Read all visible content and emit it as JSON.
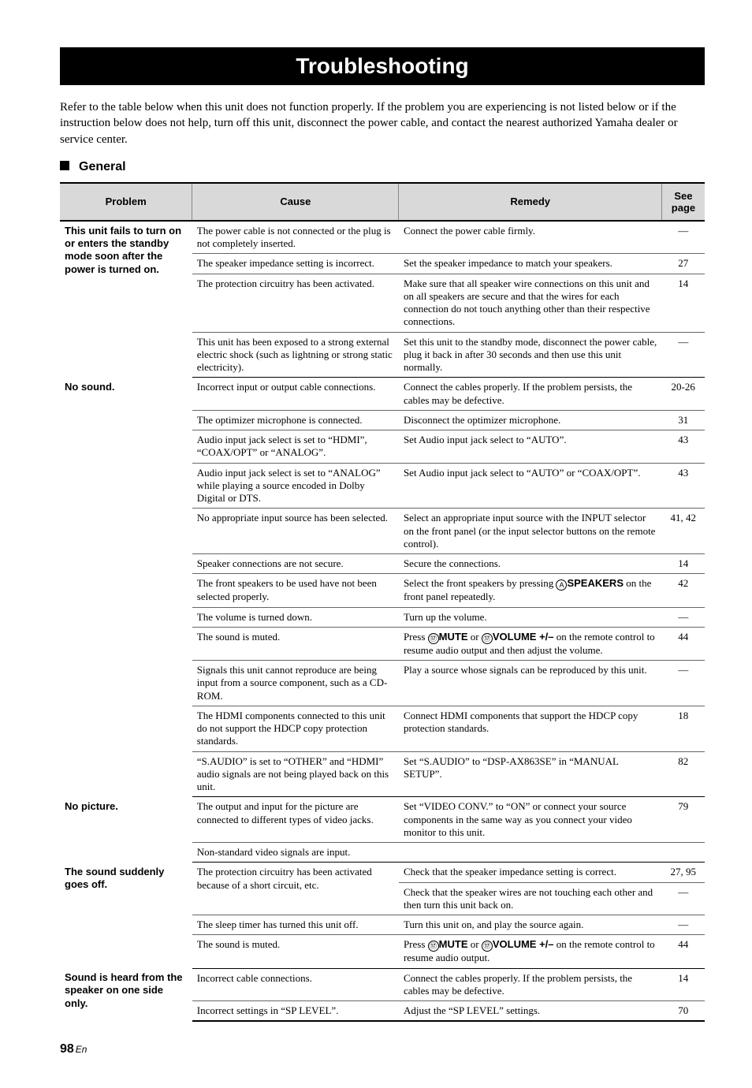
{
  "title": "Troubleshooting",
  "intro": "Refer to the table below when this unit does not function properly. If the problem you are experiencing is not listed below or if the instruction below does not help, turn off this unit, disconnect the power cable, and contact the nearest authorized Yamaha dealer or service center.",
  "section": "General",
  "headers": {
    "problem": "Problem",
    "cause": "Cause",
    "remedy": "Remedy",
    "page": "See page"
  },
  "rows": [
    {
      "problem": "This unit fails to turn on or enters the standby mode soon after the power is turned on.",
      "problem_rowspan": 4,
      "cause": "The power cable is not connected or the plug is not completely inserted.",
      "remedy": "Connect the power cable firmly.",
      "page": "—",
      "sep": "thin",
      "problem_nobb": true
    },
    {
      "cause": "The speaker impedance setting is incorrect.",
      "remedy": "Set the speaker impedance to match your speakers.",
      "page": "27",
      "sep": "thin"
    },
    {
      "cause": "The protection circuitry has been activated.",
      "remedy": "Make sure that all speaker wire connections on this unit and on all speakers are secure and that the wires for each connection do not touch anything other than their respective connections.",
      "page": "14",
      "sep": "thin"
    },
    {
      "cause": "This unit has been exposed to a strong external electric shock (such as lightning or strong static electricity).",
      "remedy": "Set this unit to the standby mode, disconnect the power cable, plug it back in after 30 seconds and then use this unit normally.",
      "page": "—",
      "sep": "thick"
    },
    {
      "problem": "No sound.",
      "problem_rowspan": 12,
      "cause": "Incorrect input or output cable connections.",
      "remedy": "Connect the cables properly. If the problem persists, the cables may be defective.",
      "page": "20-26",
      "sep": "thin",
      "problem_nobb": true
    },
    {
      "cause": "The optimizer microphone is connected.",
      "remedy": "Disconnect the optimizer microphone.",
      "page": "31",
      "sep": "thin"
    },
    {
      "cause": "Audio input jack select is set to “HDMI”, “COAX/OPT” or “ANALOG”.",
      "remedy": "Set Audio input jack select to “AUTO”.",
      "page": "43",
      "sep": "thin"
    },
    {
      "cause": "Audio input jack select is set to “ANALOG” while playing a source encoded in Dolby Digital or DTS.",
      "remedy": "Set Audio input jack select to “AUTO” or “COAX/OPT”.",
      "page": "43",
      "sep": "thin"
    },
    {
      "cause": "No appropriate input source has been selected.",
      "remedy": "Select an appropriate input source with the INPUT selector on the front panel (or the input selector buttons on the remote control).",
      "page": "41, 42",
      "sep": "thin"
    },
    {
      "cause": "Speaker connections are not secure.",
      "remedy": "Secure the connections.",
      "page": "14",
      "sep": "thin"
    },
    {
      "cause": "The front speakers to be used have not been selected properly.",
      "remedy_html": "Select the front speakers by pressing <span class='circled'>A</span><span class='sans-bold'>SPEAKERS</span> on the front panel repeatedly.",
      "page": "42",
      "sep": "thin"
    },
    {
      "cause": "The volume is turned down.",
      "remedy": "Turn up the volume.",
      "page": "—",
      "sep": "thin"
    },
    {
      "cause": "The sound is muted.",
      "remedy_html": "Press <span class='circled'>⑰</span><span class='sans-bold'>MUTE</span> or <span class='circled'>⑰</span><span class='sans-bold'>VOLUME +/–</span> on the remote control to resume audio output and then adjust the volume.",
      "page": "44",
      "sep": "thin"
    },
    {
      "cause": "Signals this unit cannot reproduce are being input from a source component, such as a CD-ROM.",
      "remedy": "Play a source whose signals can be reproduced by this unit.",
      "page": "—",
      "sep": "thin"
    },
    {
      "cause": "The HDMI components connected to this unit do not support the HDCP copy protection standards.",
      "remedy": "Connect HDMI components that support the HDCP copy protection standards.",
      "page": "18",
      "sep": "thin"
    },
    {
      "cause": "“S.AUDIO” is set to “OTHER” and “HDMI” audio signals are not being played back on this unit.",
      "remedy": "Set “S.AUDIO” to “DSP-AX863SE” in “MANUAL SETUP”.",
      "page": "82",
      "sep": "thick"
    },
    {
      "problem": "No picture.",
      "problem_rowspan": 2,
      "cause": "The output and input for the picture are connected to different types of video jacks.",
      "remedy": "Set “VIDEO CONV.” to “ON” or connect your source components in the same way as you connect your video monitor to this unit.",
      "page": "79",
      "sep": "thin",
      "problem_nobb": true
    },
    {
      "cause": "Non-standard video signals are input.",
      "remedy": "",
      "page": "",
      "sep": "thick"
    },
    {
      "problem": "The sound suddenly goes off.",
      "problem_rowspan": 4,
      "cause": "The protection circuitry has been activated because of a short circuit, etc.",
      "cause_rowspan": 2,
      "remedy": "Check that the speaker impedance setting is correct.",
      "page": "27, 95",
      "sep": "thin",
      "problem_nobb": true,
      "cause_nobb": true
    },
    {
      "remedy": "Check that the speaker wires are not touching each other and then turn this unit back on.",
      "page": "—",
      "sep": "thin"
    },
    {
      "cause": "The sleep timer has turned this unit off.",
      "remedy": "Turn this unit on, and play the source again.",
      "page": "—",
      "sep": "thin"
    },
    {
      "cause": "The sound is muted.",
      "remedy_html": "Press <span class='circled'>⑰</span><span class='sans-bold'>MUTE</span> or <span class='circled'>⑰</span><span class='sans-bold'>VOLUME +/–</span> on the remote control to resume audio output.",
      "page": "44",
      "sep": "thick"
    },
    {
      "problem": "Sound is heard from the speaker on one side only.",
      "problem_rowspan": 2,
      "cause": "Incorrect cable connections.",
      "remedy": "Connect the cables properly. If the problem persists, the cables may be defective.",
      "page": "14",
      "sep": "thin",
      "problem_nobb": true
    },
    {
      "cause": "Incorrect settings in “SP LEVEL”.",
      "remedy": "Adjust the “SP LEVEL” settings.",
      "page": "70",
      "last": true
    }
  ],
  "page_number": "98",
  "page_lang": "En"
}
